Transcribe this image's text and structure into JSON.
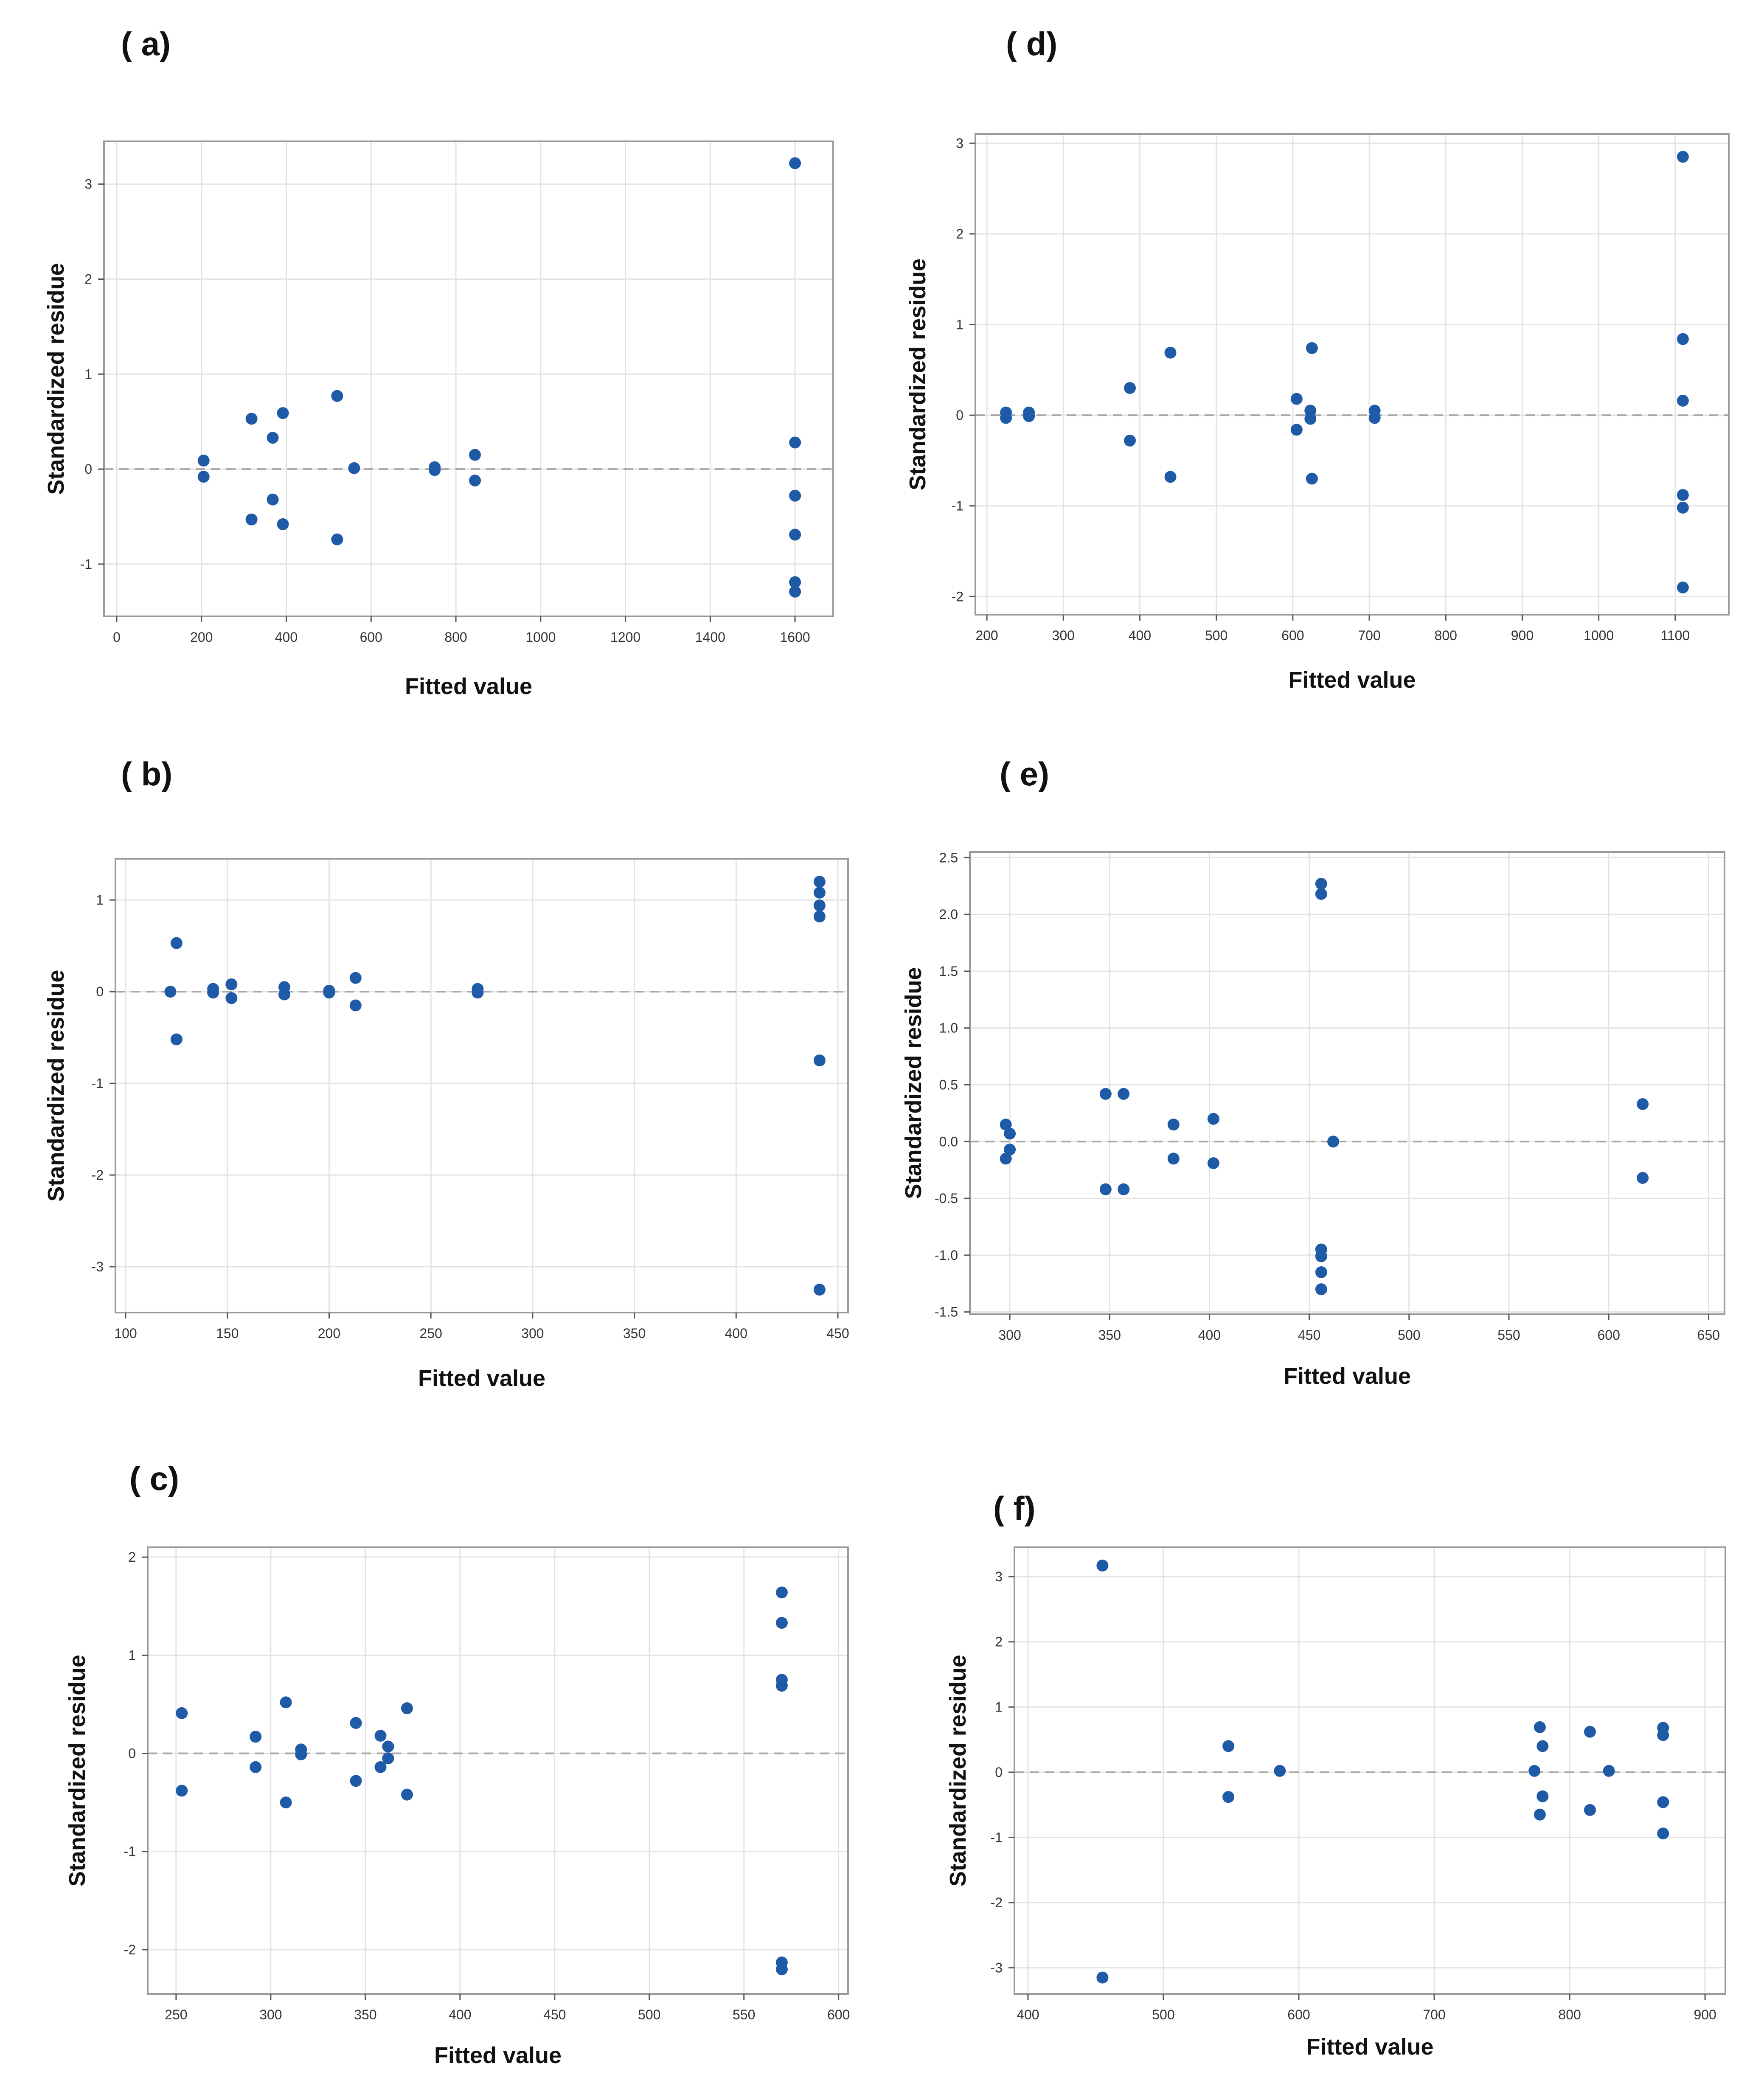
{
  "chart_data": [
    {
      "panel": "( a)",
      "type": "scatter",
      "xlabel": "Fitted value",
      "ylabel": "Standardized residue",
      "xlim": [
        -30,
        1690
      ],
      "ylim": [
        -1.55,
        3.45
      ],
      "xticks": [
        0,
        200,
        400,
        600,
        800,
        1000,
        1200,
        1400,
        1600
      ],
      "yticks": [
        -1,
        0,
        1,
        2,
        3
      ],
      "ytick_labels": [
        "-1",
        "0",
        "1",
        "2",
        "3"
      ],
      "reference_line": 0,
      "marker_color": "#1f5aa6",
      "points": [
        [
          205,
          0.09
        ],
        [
          205,
          -0.08
        ],
        [
          318,
          0.53
        ],
        [
          318,
          -0.53
        ],
        [
          368,
          0.33
        ],
        [
          368,
          -0.32
        ],
        [
          392,
          0.59
        ],
        [
          392,
          -0.58
        ],
        [
          520,
          0.77
        ],
        [
          520,
          -0.74
        ],
        [
          560,
          0.01
        ],
        [
          750,
          0.02
        ],
        [
          750,
          -0.01
        ],
        [
          845,
          0.15
        ],
        [
          845,
          -0.12
        ],
        [
          1600,
          3.22
        ],
        [
          1600,
          0.28
        ],
        [
          1600,
          -0.28
        ],
        [
          1600,
          -0.69
        ],
        [
          1600,
          -1.19
        ],
        [
          1600,
          -1.29
        ]
      ]
    },
    {
      "panel": "( b)",
      "type": "scatter",
      "xlabel": "Fitted value",
      "ylabel": "Standardized residue",
      "xlim": [
        95,
        455
      ],
      "ylim": [
        -3.5,
        1.45
      ],
      "xticks": [
        100,
        150,
        200,
        250,
        300,
        350,
        400,
        450
      ],
      "yticks": [
        -3,
        -2,
        -1,
        0,
        1
      ],
      "ytick_labels": [
        "-3",
        "-2",
        "-1",
        "0",
        "1"
      ],
      "reference_line": 0,
      "marker_color": "#1f5aa6",
      "points": [
        [
          122,
          0.0
        ],
        [
          125,
          0.53
        ],
        [
          125,
          -0.52
        ],
        [
          143,
          0.03
        ],
        [
          143,
          -0.01
        ],
        [
          152,
          0.08
        ],
        [
          152,
          -0.07
        ],
        [
          178,
          0.05
        ],
        [
          178,
          -0.03
        ],
        [
          200,
          0.01
        ],
        [
          200,
          -0.01
        ],
        [
          213,
          0.15
        ],
        [
          213,
          -0.15
        ],
        [
          273,
          0.03
        ],
        [
          273,
          -0.01
        ],
        [
          441,
          1.2
        ],
        [
          441,
          1.08
        ],
        [
          441,
          0.94
        ],
        [
          441,
          0.82
        ],
        [
          441,
          -0.75
        ],
        [
          441,
          -3.25
        ]
      ]
    },
    {
      "panel": "( c)",
      "type": "scatter",
      "xlabel": "Fitted value",
      "ylabel": "Standardized residue",
      "xlim": [
        235,
        605
      ],
      "ylim": [
        -2.45,
        2.1
      ],
      "xticks": [
        250,
        300,
        350,
        400,
        450,
        500,
        550,
        600
      ],
      "yticks": [
        -2,
        -1,
        0,
        1,
        2
      ],
      "ytick_labels": [
        "-2",
        "-1",
        "0",
        "1",
        "2"
      ],
      "reference_line": 0,
      "marker_color": "#1f5aa6",
      "points": [
        [
          253,
          0.41
        ],
        [
          253,
          -0.38
        ],
        [
          292,
          0.17
        ],
        [
          292,
          -0.14
        ],
        [
          308,
          0.52
        ],
        [
          308,
          -0.5
        ],
        [
          316,
          0.04
        ],
        [
          316,
          -0.01
        ],
        [
          345,
          0.31
        ],
        [
          345,
          -0.28
        ],
        [
          358,
          0.18
        ],
        [
          358,
          -0.14
        ],
        [
          362,
          0.07
        ],
        [
          362,
          -0.05
        ],
        [
          372,
          0.46
        ],
        [
          372,
          -0.42
        ],
        [
          570,
          1.64
        ],
        [
          570,
          1.33
        ],
        [
          570,
          0.75
        ],
        [
          570,
          0.69
        ],
        [
          570,
          -2.13
        ],
        [
          570,
          -2.2
        ]
      ]
    },
    {
      "panel": "( d)",
      "type": "scatter",
      "xlabel": "Fitted value",
      "ylabel": "Standardized residue",
      "xlim": [
        185,
        1170
      ],
      "ylim": [
        -2.2,
        3.1
      ],
      "xticks": [
        200,
        300,
        400,
        500,
        600,
        700,
        800,
        900,
        1000,
        1100
      ],
      "yticks": [
        -2,
        -1,
        0,
        1,
        2,
        3
      ],
      "ytick_labels": [
        "-2",
        "-1",
        "0",
        "1",
        "2",
        "3"
      ],
      "reference_line": 0,
      "marker_color": "#1f5aa6",
      "points": [
        [
          225,
          0.03
        ],
        [
          225,
          -0.03
        ],
        [
          255,
          0.03
        ],
        [
          255,
          -0.01
        ],
        [
          387,
          0.3
        ],
        [
          387,
          -0.28
        ],
        [
          440,
          0.69
        ],
        [
          440,
          -0.68
        ],
        [
          605,
          0.18
        ],
        [
          605,
          -0.16
        ],
        [
          623,
          0.05
        ],
        [
          623,
          -0.04
        ],
        [
          625,
          0.74
        ],
        [
          625,
          -0.7
        ],
        [
          707,
          0.05
        ],
        [
          707,
          -0.03
        ],
        [
          1110,
          2.85
        ],
        [
          1110,
          0.84
        ],
        [
          1110,
          0.16
        ],
        [
          1110,
          -0.88
        ],
        [
          1110,
          -1.02
        ],
        [
          1110,
          -1.9
        ]
      ]
    },
    {
      "panel": "( e)",
      "type": "scatter",
      "xlabel": "Fitted value",
      "ylabel": "Standardized residue",
      "xlim": [
        280,
        658
      ],
      "ylim": [
        -1.52,
        2.55
      ],
      "xticks": [
        300,
        350,
        400,
        450,
        500,
        550,
        600,
        650
      ],
      "yticks": [
        -1.5,
        -1.0,
        -0.5,
        0.0,
        0.5,
        1.0,
        1.5,
        2.0,
        2.5
      ],
      "ytick_labels": [
        "-1.5",
        "-1.0",
        "-0.5",
        "0.0",
        "0.5",
        "1.0",
        "1.5",
        "2.0",
        "2.5"
      ],
      "reference_line": 0,
      "marker_color": "#1f5aa6",
      "points": [
        [
          298,
          0.15
        ],
        [
          300,
          0.07
        ],
        [
          300,
          -0.07
        ],
        [
          298,
          -0.15
        ],
        [
          348,
          0.42
        ],
        [
          348,
          -0.42
        ],
        [
          357,
          0.42
        ],
        [
          357,
          -0.42
        ],
        [
          382,
          0.15
        ],
        [
          382,
          -0.15
        ],
        [
          402,
          0.2
        ],
        [
          402,
          -0.19
        ],
        [
          456,
          2.27
        ],
        [
          456,
          2.18
        ],
        [
          456,
          -0.95
        ],
        [
          456,
          -1.01
        ],
        [
          456,
          -1.15
        ],
        [
          456,
          -1.3
        ],
        [
          462,
          0.0
        ],
        [
          617,
          0.33
        ],
        [
          617,
          -0.32
        ]
      ]
    },
    {
      "panel": "( f)",
      "type": "scatter",
      "xlabel": "Fitted value",
      "ylabel": "Standardized residue",
      "xlim": [
        390,
        915
      ],
      "ylim": [
        -3.4,
        3.45
      ],
      "xticks": [
        400,
        500,
        600,
        700,
        800,
        900
      ],
      "yticks": [
        -3,
        -2,
        -1,
        0,
        1,
        2,
        3
      ],
      "ytick_labels": [
        "-3",
        "-2",
        "-1",
        "0",
        "1",
        "2",
        "3"
      ],
      "reference_line": 0,
      "marker_color": "#1f5aa6",
      "points": [
        [
          455,
          3.17
        ],
        [
          455,
          -3.15
        ],
        [
          548,
          0.4
        ],
        [
          548,
          -0.38
        ],
        [
          586,
          0.02
        ],
        [
          774,
          0.02
        ],
        [
          778,
          0.69
        ],
        [
          778,
          -0.65
        ],
        [
          780,
          0.4
        ],
        [
          780,
          -0.37
        ],
        [
          815,
          0.62
        ],
        [
          815,
          -0.58
        ],
        [
          829,
          0.02
        ],
        [
          869,
          0.68
        ],
        [
          869,
          0.57
        ],
        [
          869,
          -0.46
        ],
        [
          869,
          -0.94
        ]
      ]
    }
  ]
}
